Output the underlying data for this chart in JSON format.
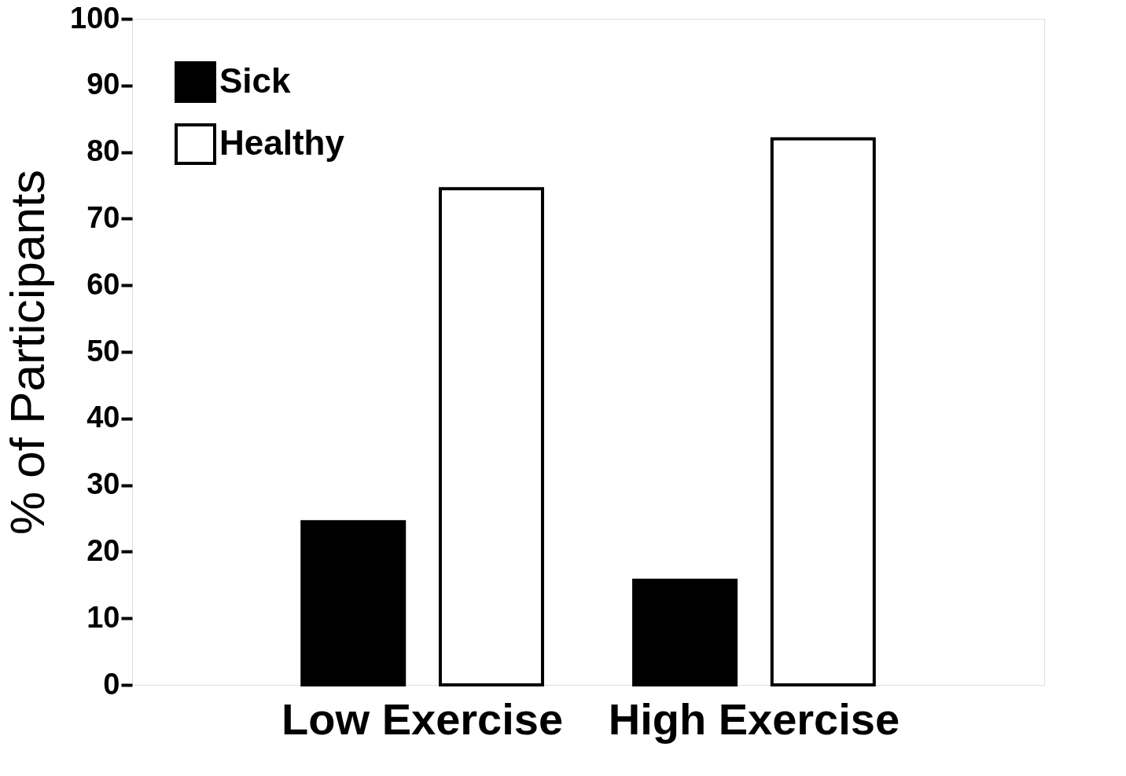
{
  "chart_data": {
    "type": "bar",
    "ylabel": "% of Participants",
    "categories": [
      "Low Exercise",
      "High Exercise"
    ],
    "series": [
      {
        "name": "Sick",
        "color": "#000000",
        "values": [
          24.5,
          15.7
        ]
      },
      {
        "name": "Healthy",
        "color": "#ffffff",
        "values": [
          74.5,
          82
        ]
      }
    ],
    "ylim": [
      0,
      100
    ],
    "yticks": [
      0,
      10,
      20,
      30,
      40,
      50,
      60,
      70,
      80,
      90,
      100
    ],
    "grid": false,
    "legend": "top left"
  }
}
